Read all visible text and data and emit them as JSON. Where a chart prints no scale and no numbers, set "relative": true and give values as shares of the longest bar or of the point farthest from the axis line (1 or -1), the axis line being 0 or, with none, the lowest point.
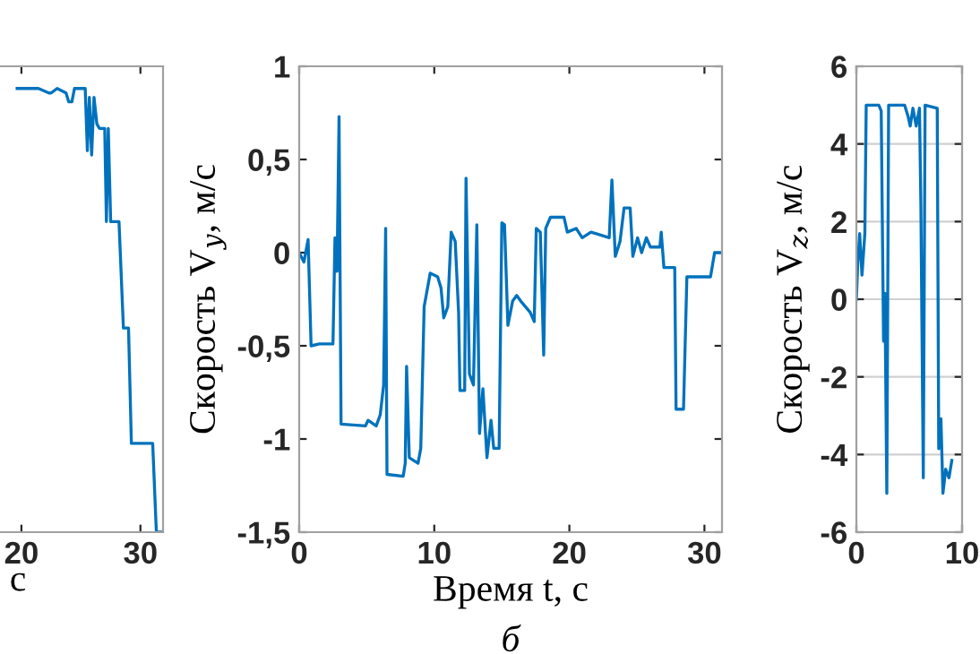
{
  "chart_data": [
    {
      "type": "line",
      "relative": true,
      "xlabel": "с",
      "xlim": [
        18.2,
        31.9
      ],
      "xticks": [
        20,
        30
      ],
      "color": "#0072bd",
      "x": [
        19.64,
        21.43,
        22.3,
        22.5,
        23.0,
        23.75,
        23.97,
        24.24,
        24.46,
        25.36,
        25.54,
        25.71,
        25.9,
        26.1,
        26.34,
        26.56,
        27.0,
        27.14,
        27.3,
        27.5,
        28.2,
        28.57,
        29.0,
        29.24,
        31.03,
        31.34,
        31.9
      ],
      "values": [
        1,
        1,
        0.99,
        0.99,
        1,
        0.99,
        0.97,
        0.97,
        1,
        1,
        0.86,
        0.98,
        0.85,
        0.98,
        0.92,
        0.91,
        0.91,
        0.7,
        0.91,
        0.7,
        0.7,
        0.46,
        0.46,
        0.2,
        0.2,
        0,
        0
      ]
    },
    {
      "type": "line",
      "ylabel": "Скорость V$_{y}$, м/с",
      "xlabel": "Время t, с",
      "annotations": [
        "б"
      ],
      "xlim": [
        0,
        31.3
      ],
      "xticks": [
        0,
        10,
        20,
        30
      ],
      "ylim": [
        -1.5,
        1
      ],
      "yticks": [
        {
          "value": -1.5,
          "label": "-1,5"
        },
        {
          "value": -1,
          "label": "-1"
        },
        {
          "value": -0.5,
          "label": "-0,5"
        },
        0,
        {
          "value": 0.5,
          "label": "0,5"
        },
        1
      ],
      "color": "#0072bd",
      "x": [
        0,
        0.35,
        0.66,
        0.88,
        1.5,
        2.5,
        2.65,
        2.8,
        2.95,
        3.1,
        4.9,
        5.1,
        5.7,
        6.0,
        6.25,
        6.4,
        6.5,
        7.7,
        7.85,
        7.95,
        8.15,
        8.8,
        9.0,
        9.25,
        9.7,
        10.25,
        10.5,
        10.7,
        11.0,
        11.25,
        11.55,
        11.8,
        11.9,
        12.25,
        12.35,
        12.6,
        12.9,
        13.15,
        13.35,
        13.6,
        13.9,
        14.2,
        14.4,
        14.8,
        15.0,
        15.2,
        15.45,
        15.8,
        16.1,
        16.4,
        16.75,
        17.1,
        17.4,
        17.55,
        17.85,
        18.1,
        18.25,
        18.6,
        19.6,
        19.85,
        20.5,
        20.95,
        21.6,
        22.05,
        22.95,
        23.15,
        23.4,
        23.75,
        24.05,
        24.5,
        24.7,
        25.05,
        25.35,
        25.7,
        26.0,
        26.7,
        26.8,
        27.0,
        27.8,
        27.9,
        28.45,
        28.7,
        30.45,
        30.75,
        31.3
      ],
      "values": [
        0,
        -0.05,
        0.07,
        -0.5,
        -0.49,
        -0.49,
        0.08,
        -0.1,
        0.73,
        -0.92,
        -0.93,
        -0.9,
        -0.93,
        -0.87,
        -0.71,
        0.13,
        -1.19,
        -1.2,
        -1.13,
        -0.61,
        -1.1,
        -1.13,
        -1.05,
        -0.29,
        -0.11,
        -0.13,
        -0.19,
        -0.35,
        -0.29,
        0.11,
        0.06,
        -0.32,
        -0.74,
        -0.74,
        0.4,
        -0.65,
        -0.71,
        0.15,
        -0.97,
        -0.73,
        -1.1,
        -0.9,
        -1.05,
        -1.05,
        0.16,
        0.15,
        -0.39,
        -0.26,
        -0.23,
        -0.26,
        -0.29,
        -0.32,
        -0.37,
        0.13,
        0.11,
        -0.55,
        0.13,
        0.19,
        0.19,
        0.11,
        0.13,
        0.08,
        0.11,
        0.1,
        0.08,
        0.39,
        -0.02,
        0.06,
        0.24,
        0.24,
        -0.02,
        0.08,
        0,
        0.08,
        0.03,
        0.03,
        0.11,
        -0.08,
        -0.08,
        -0.84,
        -0.84,
        -0.13,
        -0.13,
        0,
        0
      ]
    },
    {
      "type": "line",
      "ylabel": "Скорость V$_{z}$, м/с",
      "grid": "y",
      "xlim": [
        0,
        10
      ],
      "xticks": [
        0,
        10
      ],
      "ylim": [
        -6,
        6
      ],
      "yticks": [
        -6,
        -4,
        -2,
        0,
        2,
        4,
        6
      ],
      "color": "#0072bd",
      "x": [
        0,
        0.13,
        0.31,
        0.53,
        0.8,
        0.93,
        2.12,
        2.35,
        2.57,
        2.7,
        2.88,
        3.05,
        4.56,
        4.9,
        5.09,
        5.35,
        5.66,
        5.97,
        6.1,
        6.33,
        6.5,
        7.65,
        7.79,
        8.0,
        8.19,
        8.45,
        8.76,
        9.03
      ],
      "values": [
        0,
        0.92,
        1.69,
        0.62,
        1.69,
        5,
        5,
        4.85,
        -1.08,
        0.15,
        -5,
        5,
        5,
        4.7,
        4.46,
        4.92,
        4.46,
        4.92,
        2.46,
        -4.6,
        5,
        4.92,
        -3.85,
        -3.08,
        -5,
        -4.38,
        -4.6,
        -4.15
      ]
    }
  ]
}
